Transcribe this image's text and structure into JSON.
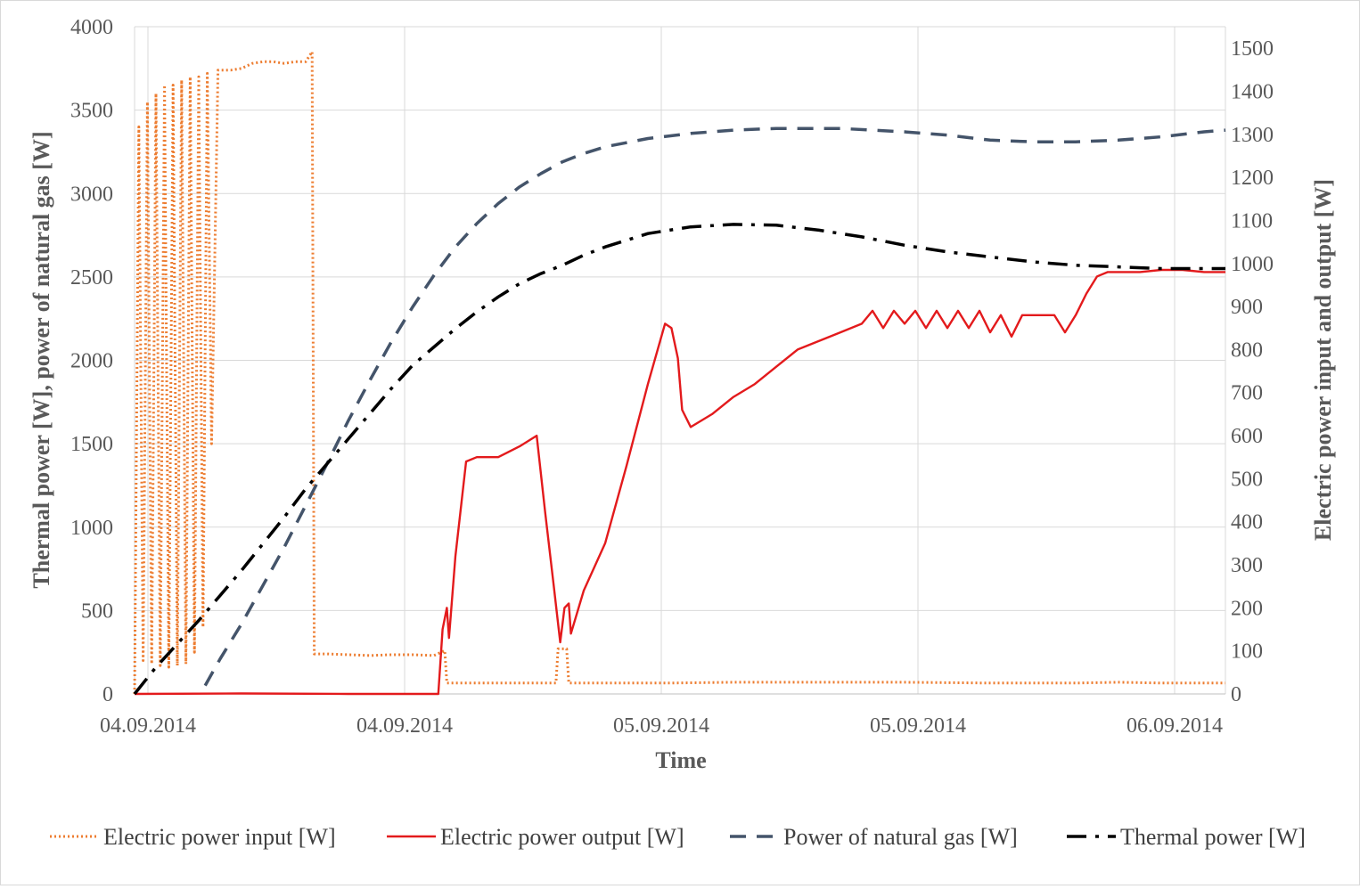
{
  "chart_data": {
    "type": "line",
    "xlabel": "Time",
    "ylabel_left": "Thermal power [W], power of natural gas [W]",
    "ylabel_right": "Electric power input and output [W]",
    "x_tick_labels": [
      "04.09.2014",
      "04.09.2014",
      "05.09.2014",
      "05.09.2014",
      "06.09.2014"
    ],
    "x_tick_hours": [
      0,
      12,
      24,
      36,
      48
    ],
    "xlim_hours": [
      0,
      51
    ],
    "ylim_left": [
      0,
      4000
    ],
    "ylim_right": [
      0,
      1550
    ],
    "y_left_ticks": [
      0,
      500,
      1000,
      1500,
      2000,
      2500,
      3000,
      3500,
      4000
    ],
    "y_right_ticks": [
      0,
      100,
      200,
      300,
      400,
      500,
      600,
      700,
      800,
      900,
      1000,
      1100,
      1200,
      1300,
      1400,
      1500
    ],
    "grid": true,
    "legend_position": "bottom",
    "series": [
      {
        "name": "Electric power input [W]",
        "axis": "left",
        "color": "#ED7D31",
        "dash": "dotted",
        "points": [
          [
            0,
            0
          ],
          [
            0.2,
            3400
          ],
          [
            0.4,
            200
          ],
          [
            0.6,
            3550
          ],
          [
            0.8,
            180
          ],
          [
            1.0,
            3600
          ],
          [
            1.2,
            170
          ],
          [
            1.4,
            3650
          ],
          [
            1.6,
            160
          ],
          [
            1.8,
            3650
          ],
          [
            2.0,
            170
          ],
          [
            2.2,
            3680
          ],
          [
            2.4,
            180
          ],
          [
            2.6,
            3700
          ],
          [
            2.8,
            250
          ],
          [
            3.0,
            3700
          ],
          [
            3.2,
            400
          ],
          [
            3.4,
            3720
          ],
          [
            3.6,
            1500
          ],
          [
            3.9,
            3740
          ],
          [
            4.5,
            3740
          ],
          [
            5.0,
            3750
          ],
          [
            5.5,
            3780
          ],
          [
            6.0,
            3790
          ],
          [
            6.5,
            3790
          ],
          [
            7.0,
            3780
          ],
          [
            7.5,
            3790
          ],
          [
            8.0,
            3790
          ],
          [
            8.3,
            3850
          ],
          [
            8.4,
            240
          ],
          [
            9.0,
            240
          ],
          [
            10,
            235
          ],
          [
            11,
            230
          ],
          [
            12,
            235
          ],
          [
            13,
            235
          ],
          [
            14,
            230
          ],
          [
            14.5,
            260
          ],
          [
            14.6,
            65
          ],
          [
            16,
            65
          ],
          [
            18,
            65
          ],
          [
            19.7,
            65
          ],
          [
            19.8,
            270
          ],
          [
            20.2,
            270
          ],
          [
            20.3,
            65
          ],
          [
            22,
            65
          ],
          [
            25,
            65
          ],
          [
            28,
            70
          ],
          [
            32,
            70
          ],
          [
            36,
            70
          ],
          [
            40,
            65
          ],
          [
            44,
            65
          ],
          [
            46,
            70
          ],
          [
            48,
            65
          ],
          [
            50,
            65
          ],
          [
            51,
            65
          ]
        ]
      },
      {
        "name": "Electric power output [W]",
        "axis": "right",
        "color": "#E31A1C",
        "dash": "solid",
        "points": [
          [
            0,
            0
          ],
          [
            5,
            1
          ],
          [
            10,
            0
          ],
          [
            14.2,
            0
          ],
          [
            14.4,
            150
          ],
          [
            14.6,
            200
          ],
          [
            14.7,
            130
          ],
          [
            15.0,
            320
          ],
          [
            15.5,
            540
          ],
          [
            16,
            550
          ],
          [
            17,
            550
          ],
          [
            18,
            575
          ],
          [
            18.8,
            600
          ],
          [
            19.2,
            420
          ],
          [
            19.6,
            250
          ],
          [
            19.9,
            120
          ],
          [
            20.1,
            200
          ],
          [
            20.3,
            210
          ],
          [
            20.4,
            140
          ],
          [
            21,
            240
          ],
          [
            22,
            350
          ],
          [
            23,
            530
          ],
          [
            24,
            720
          ],
          [
            24.8,
            860
          ],
          [
            25.1,
            850
          ],
          [
            25.4,
            780
          ],
          [
            25.6,
            660
          ],
          [
            26,
            620
          ],
          [
            27,
            650
          ],
          [
            28,
            690
          ],
          [
            29,
            720
          ],
          [
            30,
            760
          ],
          [
            31,
            800
          ],
          [
            32,
            820
          ],
          [
            33,
            840
          ],
          [
            34,
            860
          ],
          [
            34.5,
            890
          ],
          [
            35,
            850
          ],
          [
            35.5,
            890
          ],
          [
            36,
            860
          ],
          [
            36.5,
            890
          ],
          [
            37,
            850
          ],
          [
            37.5,
            890
          ],
          [
            38,
            850
          ],
          [
            38.5,
            890
          ],
          [
            39,
            850
          ],
          [
            39.5,
            890
          ],
          [
            40,
            840
          ],
          [
            40.5,
            880
          ],
          [
            41,
            830
          ],
          [
            41.5,
            880
          ],
          [
            42,
            880
          ],
          [
            43,
            880
          ],
          [
            43.5,
            840
          ],
          [
            44,
            880
          ],
          [
            44.5,
            930
          ],
          [
            45,
            970
          ],
          [
            45.5,
            980
          ],
          [
            47,
            980
          ],
          [
            48,
            985
          ],
          [
            49,
            985
          ],
          [
            50,
            980
          ],
          [
            51,
            980
          ]
        ]
      },
      {
        "name": "Power of natural gas [W]",
        "axis": "left",
        "color": "#44546A",
        "dash": "dashed",
        "points": [
          [
            3.3,
            50
          ],
          [
            4,
            210
          ],
          [
            5,
            420
          ],
          [
            6,
            650
          ],
          [
            7,
            880
          ],
          [
            8,
            1130
          ],
          [
            9,
            1380
          ],
          [
            10,
            1640
          ],
          [
            11,
            1880
          ],
          [
            12,
            2110
          ],
          [
            13,
            2320
          ],
          [
            14,
            2510
          ],
          [
            15,
            2680
          ],
          [
            16,
            2820
          ],
          [
            17,
            2940
          ],
          [
            18,
            3040
          ],
          [
            19,
            3120
          ],
          [
            20,
            3190
          ],
          [
            21,
            3240
          ],
          [
            22,
            3280
          ],
          [
            24,
            3330
          ],
          [
            26,
            3360
          ],
          [
            28,
            3380
          ],
          [
            30,
            3390
          ],
          [
            33,
            3390
          ],
          [
            36,
            3370
          ],
          [
            38,
            3350
          ],
          [
            40,
            3320
          ],
          [
            42,
            3310
          ],
          [
            44,
            3310
          ],
          [
            46,
            3320
          ],
          [
            48,
            3340
          ],
          [
            50,
            3370
          ],
          [
            51,
            3380
          ]
        ]
      },
      {
        "name": "Thermal power [W]",
        "axis": "left",
        "color": "#000000",
        "dash": "dashdot",
        "points": [
          [
            0,
            0
          ],
          [
            1,
            160
          ],
          [
            2,
            300
          ],
          [
            3,
            440
          ],
          [
            4,
            590
          ],
          [
            5,
            740
          ],
          [
            6,
            900
          ],
          [
            7,
            1060
          ],
          [
            8,
            1230
          ],
          [
            9,
            1380
          ],
          [
            10,
            1530
          ],
          [
            11,
            1680
          ],
          [
            12,
            1830
          ],
          [
            13,
            1970
          ],
          [
            14,
            2080
          ],
          [
            15,
            2190
          ],
          [
            16,
            2290
          ],
          [
            17,
            2380
          ],
          [
            18,
            2460
          ],
          [
            19,
            2520
          ],
          [
            20,
            2570
          ],
          [
            21,
            2630
          ],
          [
            22,
            2680
          ],
          [
            23,
            2720
          ],
          [
            24,
            2760
          ],
          [
            26,
            2800
          ],
          [
            28,
            2815
          ],
          [
            30,
            2810
          ],
          [
            32,
            2780
          ],
          [
            34,
            2740
          ],
          [
            36,
            2690
          ],
          [
            38,
            2650
          ],
          [
            40,
            2620
          ],
          [
            42,
            2590
          ],
          [
            44,
            2570
          ],
          [
            46,
            2560
          ],
          [
            48,
            2550
          ],
          [
            50,
            2550
          ],
          [
            51,
            2550
          ]
        ]
      }
    ]
  }
}
